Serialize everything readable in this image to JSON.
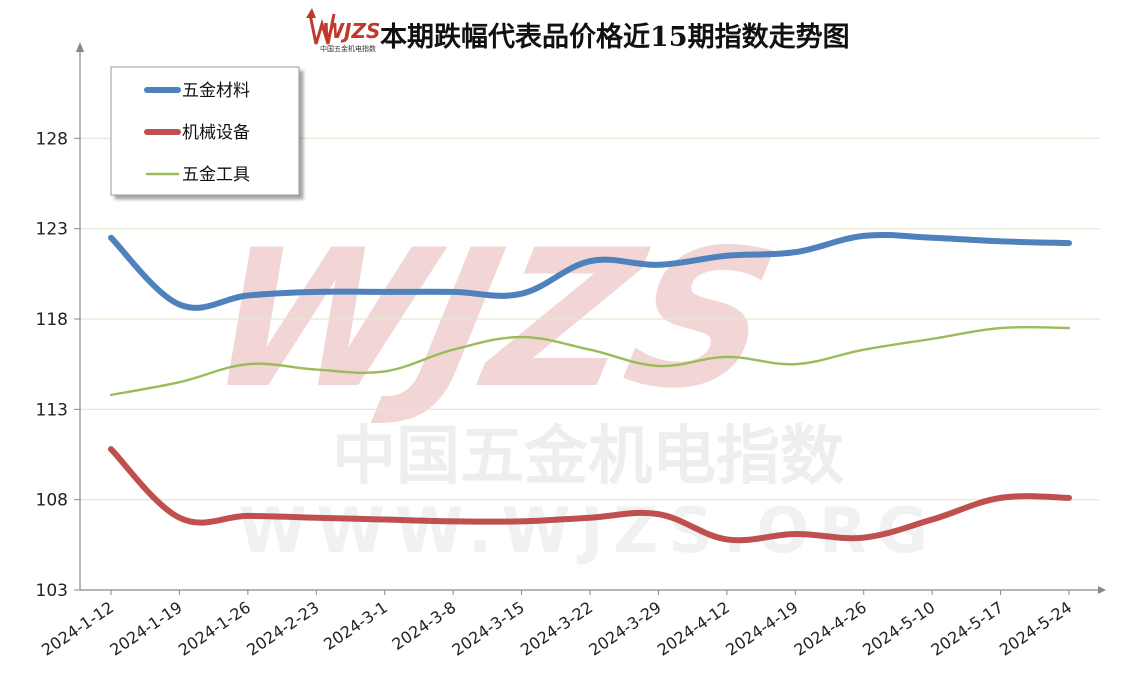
{
  "logo": {
    "text": "WJZS",
    "subtext": "中国五金机电指数"
  },
  "watermark": {
    "brand": "WJZS",
    "cn": "中国五金机电指数",
    "url": "WWW.WJZS.ORG"
  },
  "chart_data": {
    "type": "line",
    "title": "本期跌幅代表品价格近15期指数走势图",
    "xlabel": "",
    "ylabel": "",
    "categories": [
      "2024-1-12",
      "2024-1-19",
      "2024-1-26",
      "2024-2-23",
      "2024-3-1",
      "2024-3-8",
      "2024-3-15",
      "2024-3-22",
      "2024-3-29",
      "2024-4-12",
      "2024-4-19",
      "2024-4-26",
      "2024-5-10",
      "2024-5-17",
      "2024-5-24"
    ],
    "ylim": [
      103,
      133
    ],
    "yticks": [
      103,
      108,
      113,
      118,
      123,
      128
    ],
    "grid": true,
    "legend_position": "top-left",
    "series": [
      {
        "name": "五金材料",
        "color": "#4f81bd",
        "values": [
          122.5,
          118.8,
          119.3,
          119.5,
          119.5,
          119.5,
          119.4,
          121.2,
          121.0,
          121.5,
          121.7,
          122.6,
          122.5,
          122.3,
          122.2
        ]
      },
      {
        "name": "机械设备",
        "color": "#c0504d",
        "values": [
          110.8,
          107.0,
          107.1,
          107.0,
          106.9,
          106.8,
          106.8,
          107.0,
          107.2,
          105.8,
          106.1,
          105.9,
          106.9,
          108.1,
          108.1
        ]
      },
      {
        "name": "五金工具",
        "color": "#9bbb59",
        "values": [
          113.8,
          114.5,
          115.5,
          115.2,
          115.1,
          116.3,
          117.0,
          116.3,
          115.4,
          115.9,
          115.5,
          116.3,
          116.9,
          117.5,
          117.5
        ]
      }
    ]
  }
}
